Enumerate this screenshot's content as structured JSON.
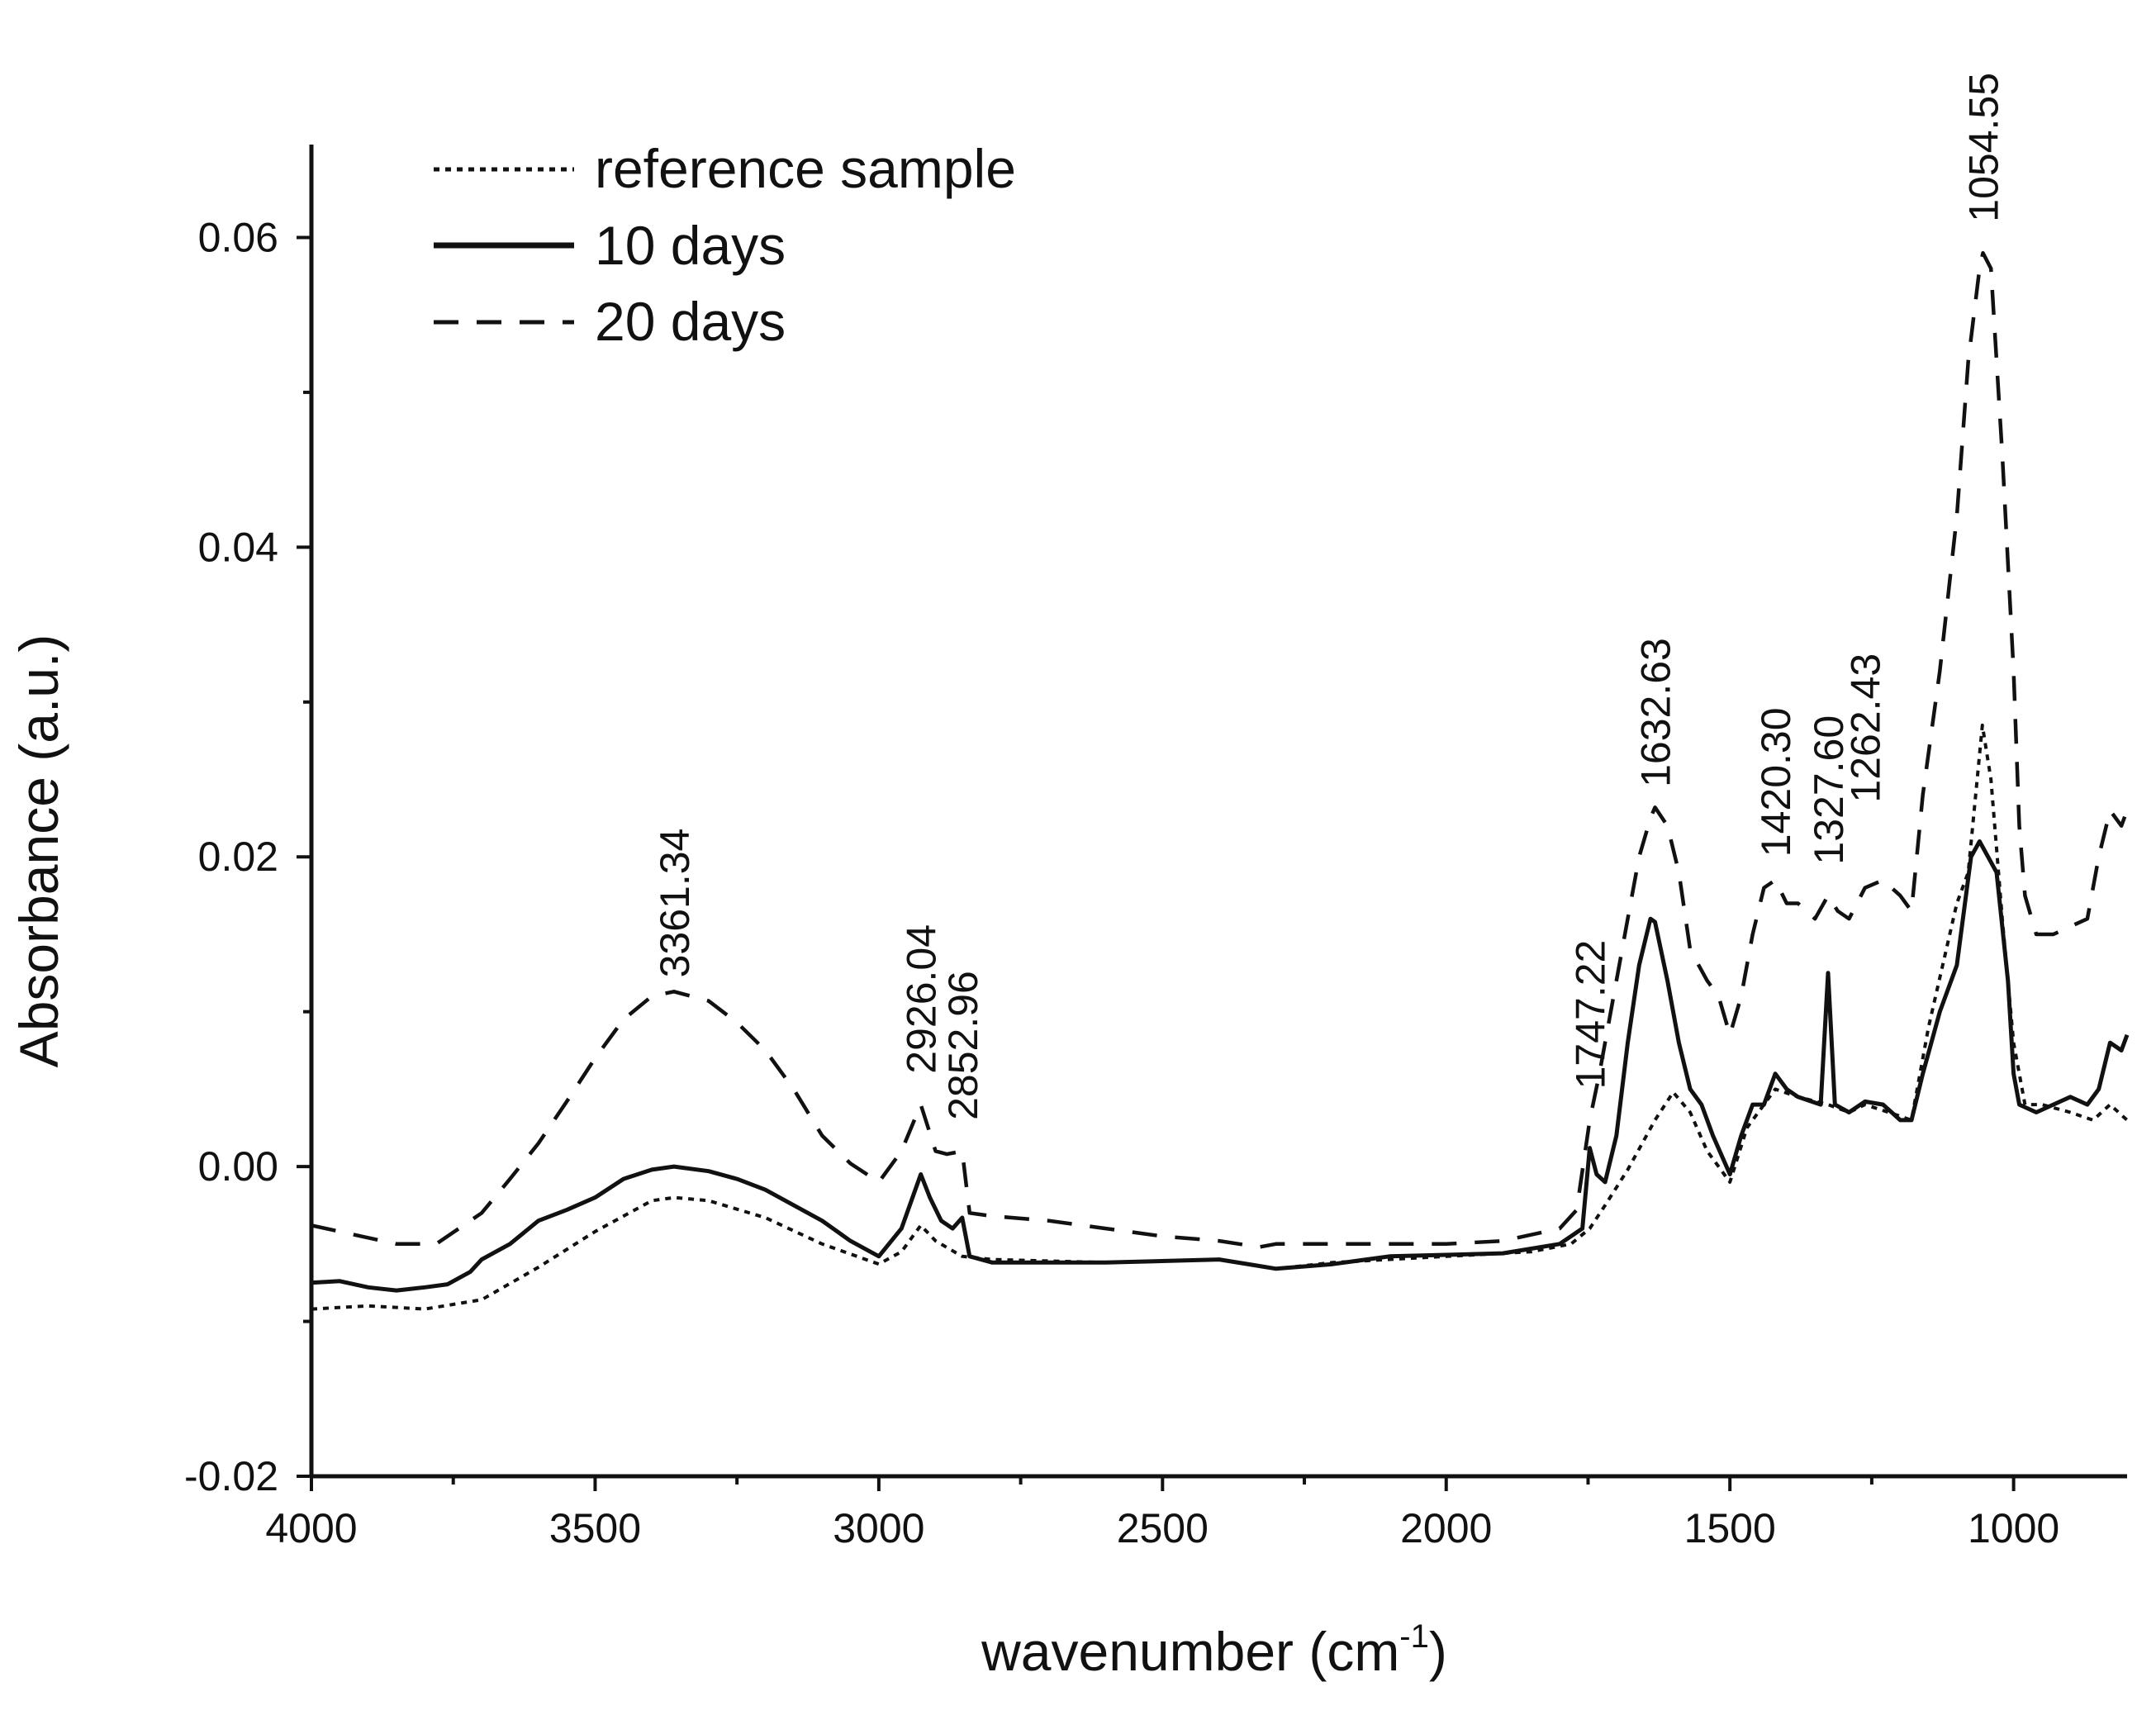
{
  "chart_data": {
    "type": "line",
    "title": "",
    "xlabel": "wavenumber (cm",
    "xlabel_sup": "-1",
    "xlabel_close": ")",
    "ylabel": "Absorbance (a.u.)",
    "xlim": [
      4000,
      800
    ],
    "ylim": [
      -0.02,
      0.066
    ],
    "x_reversed": true,
    "xticks": [
      4000,
      3500,
      3000,
      2500,
      2000,
      1500,
      1000
    ],
    "xtick_labels": [
      "4000",
      "3500",
      "3000",
      "2500",
      "2000",
      "1500",
      "1000"
    ],
    "yticks": [
      -0.02,
      0.0,
      0.02,
      0.04,
      0.06
    ],
    "ytick_labels": [
      "-0.02",
      "0.00",
      "0.02",
      "0.04",
      "0.06"
    ],
    "legend_position": "top-left",
    "series": [
      {
        "name": "reference sample",
        "style": "dotted",
        "points": [
          [
            4000,
            -0.0092
          ],
          [
            3900,
            -0.009
          ],
          [
            3800,
            -0.0092
          ],
          [
            3700,
            -0.0086
          ],
          [
            3600,
            -0.0065
          ],
          [
            3500,
            -0.0042
          ],
          [
            3400,
            -0.0022
          ],
          [
            3360,
            -0.002
          ],
          [
            3300,
            -0.0022
          ],
          [
            3200,
            -0.0033
          ],
          [
            3100,
            -0.005
          ],
          [
            3000,
            -0.0063
          ],
          [
            2960,
            -0.0055
          ],
          [
            2926,
            -0.0038
          ],
          [
            2900,
            -0.0048
          ],
          [
            2853,
            -0.0058
          ],
          [
            2800,
            -0.006
          ],
          [
            2600,
            -0.0062
          ],
          [
            2400,
            -0.006
          ],
          [
            2300,
            -0.0066
          ],
          [
            2200,
            -0.0062
          ],
          [
            2000,
            -0.0058
          ],
          [
            1850,
            -0.0055
          ],
          [
            1780,
            -0.005
          ],
          [
            1747,
            -0.004
          ],
          [
            1720,
            -0.0025
          ],
          [
            1680,
            -0.0002
          ],
          [
            1632,
            0.003
          ],
          [
            1600,
            0.0048
          ],
          [
            1570,
            0.0035
          ],
          [
            1540,
            0.001
          ],
          [
            1500,
            -0.001
          ],
          [
            1470,
            0.0025
          ],
          [
            1420,
            0.005
          ],
          [
            1380,
            0.0045
          ],
          [
            1327,
            0.004
          ],
          [
            1290,
            0.0035
          ],
          [
            1262,
            0.004
          ],
          [
            1220,
            0.0035
          ],
          [
            1180,
            0.003
          ],
          [
            1150,
            0.009
          ],
          [
            1100,
            0.017
          ],
          [
            1080,
            0.019
          ],
          [
            1055,
            0.0285
          ],
          [
            1040,
            0.025
          ],
          [
            1020,
            0.016
          ],
          [
            1000,
            0.008
          ],
          [
            980,
            0.004
          ],
          [
            950,
            0.004
          ],
          [
            900,
            0.0035
          ],
          [
            860,
            0.003
          ],
          [
            830,
            0.004
          ],
          [
            800,
            0.003
          ]
        ]
      },
      {
        "name": "10 days",
        "style": "solid",
        "points": [
          [
            4000,
            -0.0075
          ],
          [
            3950,
            -0.0074
          ],
          [
            3900,
            -0.0078
          ],
          [
            3850,
            -0.008
          ],
          [
            3800,
            -0.0078
          ],
          [
            3760,
            -0.0076
          ],
          [
            3720,
            -0.0068
          ],
          [
            3700,
            -0.006
          ],
          [
            3650,
            -0.005
          ],
          [
            3600,
            -0.0035
          ],
          [
            3550,
            -0.0028
          ],
          [
            3500,
            -0.002
          ],
          [
            3450,
            -0.0008
          ],
          [
            3400,
            -0.0002
          ],
          [
            3361,
            0.0
          ],
          [
            3300,
            -0.0003
          ],
          [
            3250,
            -0.0008
          ],
          [
            3200,
            -0.0015
          ],
          [
            3100,
            -0.0035
          ],
          [
            3050,
            -0.0048
          ],
          [
            3000,
            -0.0058
          ],
          [
            2960,
            -0.004
          ],
          [
            2926,
            -0.0005
          ],
          [
            2910,
            -0.002
          ],
          [
            2890,
            -0.0035
          ],
          [
            2870,
            -0.004
          ],
          [
            2853,
            -0.0033
          ],
          [
            2840,
            -0.0058
          ],
          [
            2800,
            -0.0062
          ],
          [
            2600,
            -0.0062
          ],
          [
            2400,
            -0.006
          ],
          [
            2300,
            -0.0066
          ],
          [
            2200,
            -0.0063
          ],
          [
            2100,
            -0.0058
          ],
          [
            2000,
            -0.0057
          ],
          [
            1900,
            -0.0056
          ],
          [
            1800,
            -0.005
          ],
          [
            1760,
            -0.004
          ],
          [
            1747,
            0.0012
          ],
          [
            1735,
            -0.0005
          ],
          [
            1720,
            -0.001
          ],
          [
            1700,
            0.002
          ],
          [
            1680,
            0.008
          ],
          [
            1660,
            0.013
          ],
          [
            1640,
            0.016
          ],
          [
            1632,
            0.0158
          ],
          [
            1610,
            0.012
          ],
          [
            1590,
            0.008
          ],
          [
            1570,
            0.005
          ],
          [
            1550,
            0.004
          ],
          [
            1530,
            0.002
          ],
          [
            1500,
            -0.0005
          ],
          [
            1480,
            0.002
          ],
          [
            1460,
            0.004
          ],
          [
            1440,
            0.004
          ],
          [
            1420,
            0.006
          ],
          [
            1400,
            0.005
          ],
          [
            1380,
            0.0045
          ],
          [
            1340,
            0.004
          ],
          [
            1327,
            0.0125
          ],
          [
            1315,
            0.004
          ],
          [
            1290,
            0.0035
          ],
          [
            1262,
            0.0042
          ],
          [
            1230,
            0.004
          ],
          [
            1200,
            0.003
          ],
          [
            1180,
            0.003
          ],
          [
            1160,
            0.006
          ],
          [
            1130,
            0.01
          ],
          [
            1100,
            0.013
          ],
          [
            1075,
            0.02
          ],
          [
            1060,
            0.021
          ],
          [
            1045,
            0.02
          ],
          [
            1030,
            0.019
          ],
          [
            1010,
            0.012
          ],
          [
            1000,
            0.006
          ],
          [
            990,
            0.004
          ],
          [
            960,
            0.0035
          ],
          [
            930,
            0.004
          ],
          [
            900,
            0.0045
          ],
          [
            870,
            0.004
          ],
          [
            850,
            0.005
          ],
          [
            830,
            0.008
          ],
          [
            810,
            0.0075
          ],
          [
            800,
            0.0085
          ]
        ]
      },
      {
        "name": "20 days",
        "style": "dashed",
        "points": [
          [
            4000,
            -0.0038
          ],
          [
            3950,
            -0.0042
          ],
          [
            3850,
            -0.005
          ],
          [
            3780,
            -0.005
          ],
          [
            3740,
            -0.004
          ],
          [
            3700,
            -0.003
          ],
          [
            3650,
            -0.0008
          ],
          [
            3600,
            0.0015
          ],
          [
            3550,
            0.0042
          ],
          [
            3500,
            0.007
          ],
          [
            3450,
            0.0095
          ],
          [
            3400,
            0.011
          ],
          [
            3361,
            0.0113
          ],
          [
            3300,
            0.0107
          ],
          [
            3250,
            0.0093
          ],
          [
            3200,
            0.0075
          ],
          [
            3150,
            0.005
          ],
          [
            3100,
            0.002
          ],
          [
            3050,
            0.0002
          ],
          [
            3000,
            -0.001
          ],
          [
            2960,
            0.001
          ],
          [
            2926,
            0.004
          ],
          [
            2900,
            0.001
          ],
          [
            2880,
            0.0008
          ],
          [
            2853,
            0.001
          ],
          [
            2840,
            -0.003
          ],
          [
            2800,
            -0.0032
          ],
          [
            2700,
            -0.0035
          ],
          [
            2600,
            -0.004
          ],
          [
            2500,
            -0.0045
          ],
          [
            2400,
            -0.0048
          ],
          [
            2330,
            -0.0052
          ],
          [
            2300,
            -0.005
          ],
          [
            2200,
            -0.005
          ],
          [
            2000,
            -0.005
          ],
          [
            1900,
            -0.0048
          ],
          [
            1800,
            -0.004
          ],
          [
            1770,
            -0.0028
          ],
          [
            1747,
            0.003
          ],
          [
            1730,
            0.006
          ],
          [
            1700,
            0.012
          ],
          [
            1680,
            0.016
          ],
          [
            1660,
            0.02
          ],
          [
            1640,
            0.0225
          ],
          [
            1632,
            0.0232
          ],
          [
            1610,
            0.022
          ],
          [
            1590,
            0.019
          ],
          [
            1570,
            0.014
          ],
          [
            1540,
            0.012
          ],
          [
            1520,
            0.011
          ],
          [
            1500,
            0.0085
          ],
          [
            1480,
            0.011
          ],
          [
            1460,
            0.015
          ],
          [
            1440,
            0.018
          ],
          [
            1420,
            0.0185
          ],
          [
            1400,
            0.017
          ],
          [
            1380,
            0.017
          ],
          [
            1350,
            0.016
          ],
          [
            1327,
            0.0175
          ],
          [
            1310,
            0.0165
          ],
          [
            1290,
            0.016
          ],
          [
            1262,
            0.018
          ],
          [
            1230,
            0.0185
          ],
          [
            1200,
            0.0175
          ],
          [
            1180,
            0.0165
          ],
          [
            1160,
            0.024
          ],
          [
            1130,
            0.032
          ],
          [
            1100,
            0.042
          ],
          [
            1080,
            0.052
          ],
          [
            1060,
            0.058
          ],
          [
            1054,
            0.059
          ],
          [
            1040,
            0.058
          ],
          [
            1020,
            0.046
          ],
          [
            1000,
            0.032
          ],
          [
            990,
            0.022
          ],
          [
            980,
            0.0175
          ],
          [
            960,
            0.015
          ],
          [
            930,
            0.015
          ],
          [
            900,
            0.0155
          ],
          [
            870,
            0.016
          ],
          [
            850,
            0.02
          ],
          [
            830,
            0.023
          ],
          [
            810,
            0.022
          ],
          [
            800,
            0.023
          ]
        ]
      }
    ],
    "annotations": [
      {
        "text": "3361.34",
        "x": 3361,
        "y": 0.0122
      },
      {
        "text": "2926.04",
        "x": 2926,
        "y": 0.006
      },
      {
        "text": "2852.96",
        "x": 2853,
        "y": 0.003
      },
      {
        "text": "1747.22",
        "x": 1747,
        "y": 0.005
      },
      {
        "text": "1632.63",
        "x": 1632,
        "y": 0.0245
      },
      {
        "text": "1420.30",
        "x": 1420,
        "y": 0.02
      },
      {
        "text": "1327.60",
        "x": 1327,
        "y": 0.0195
      },
      {
        "text": "1262.43",
        "x": 1262,
        "y": 0.0235
      },
      {
        "text": "1054.55",
        "x": 1054,
        "y": 0.061
      }
    ]
  }
}
